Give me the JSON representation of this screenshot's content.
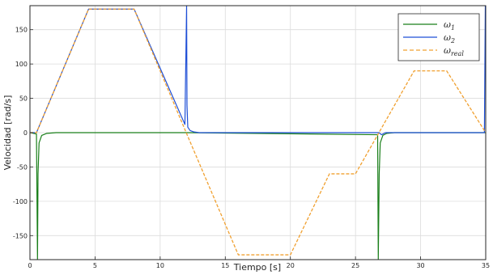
{
  "chart_data": {
    "type": "line",
    "title": "",
    "xlabel": "Tiempo [s]",
    "ylabel": "Velocidad [rad/s]",
    "xlim": [
      0,
      35
    ],
    "ylim": [
      -185,
      185
    ],
    "xticks": [
      "0",
      "5",
      "10",
      "15",
      "20",
      "25",
      "30",
      "35"
    ],
    "yticks": [
      "150",
      "100",
      "50",
      "0",
      "-50",
      "-100",
      "-150"
    ],
    "grid": true,
    "legend_position": "top-right",
    "series": [
      {
        "name": "ω_1",
        "legend_main": "ω",
        "legend_sub": "1",
        "color": "#1a7f1a",
        "style": "solid",
        "x": [
          0,
          0.5,
          0.58,
          0.62,
          0.7,
          0.9,
          1.3,
          2.0,
          12.0,
          26.7,
          26.75,
          26.82,
          26.9,
          27.1,
          27.4,
          28.0,
          35.0
        ],
        "y": [
          0,
          -2,
          -185,
          -60,
          -15,
          -4,
          -1,
          0,
          0,
          -3,
          -185,
          -60,
          -15,
          -4,
          -1,
          0,
          0
        ]
      },
      {
        "name": "ω_2",
        "legend_main": "ω",
        "legend_sub": "2",
        "color": "#1f4fd6",
        "style": "solid",
        "x": [
          0,
          0.5,
          4.5,
          8.0,
          11.9,
          12.03,
          12.06,
          12.12,
          12.3,
          12.6,
          13.0,
          26.8,
          27.0,
          27.3,
          29.5,
          32.0,
          34.9,
          34.97,
          35.0
        ],
        "y": [
          0,
          0,
          180,
          180,
          12,
          185,
          40,
          8,
          3,
          1,
          0,
          0,
          -3,
          0,
          0,
          0,
          0,
          185,
          185
        ]
      },
      {
        "name": "ω_real",
        "legend_main": "ω",
        "legend_sub": "real",
        "color": "#f0a030",
        "style": "dashed",
        "x": [
          0,
          0.5,
          4.5,
          8.0,
          12.0,
          16.0,
          20.0,
          23.0,
          25.0,
          29.5,
          32.0,
          35.0
        ],
        "y": [
          0,
          0,
          180,
          180,
          0,
          -178,
          -178,
          -60,
          -60,
          90,
          90,
          0
        ]
      }
    ]
  }
}
